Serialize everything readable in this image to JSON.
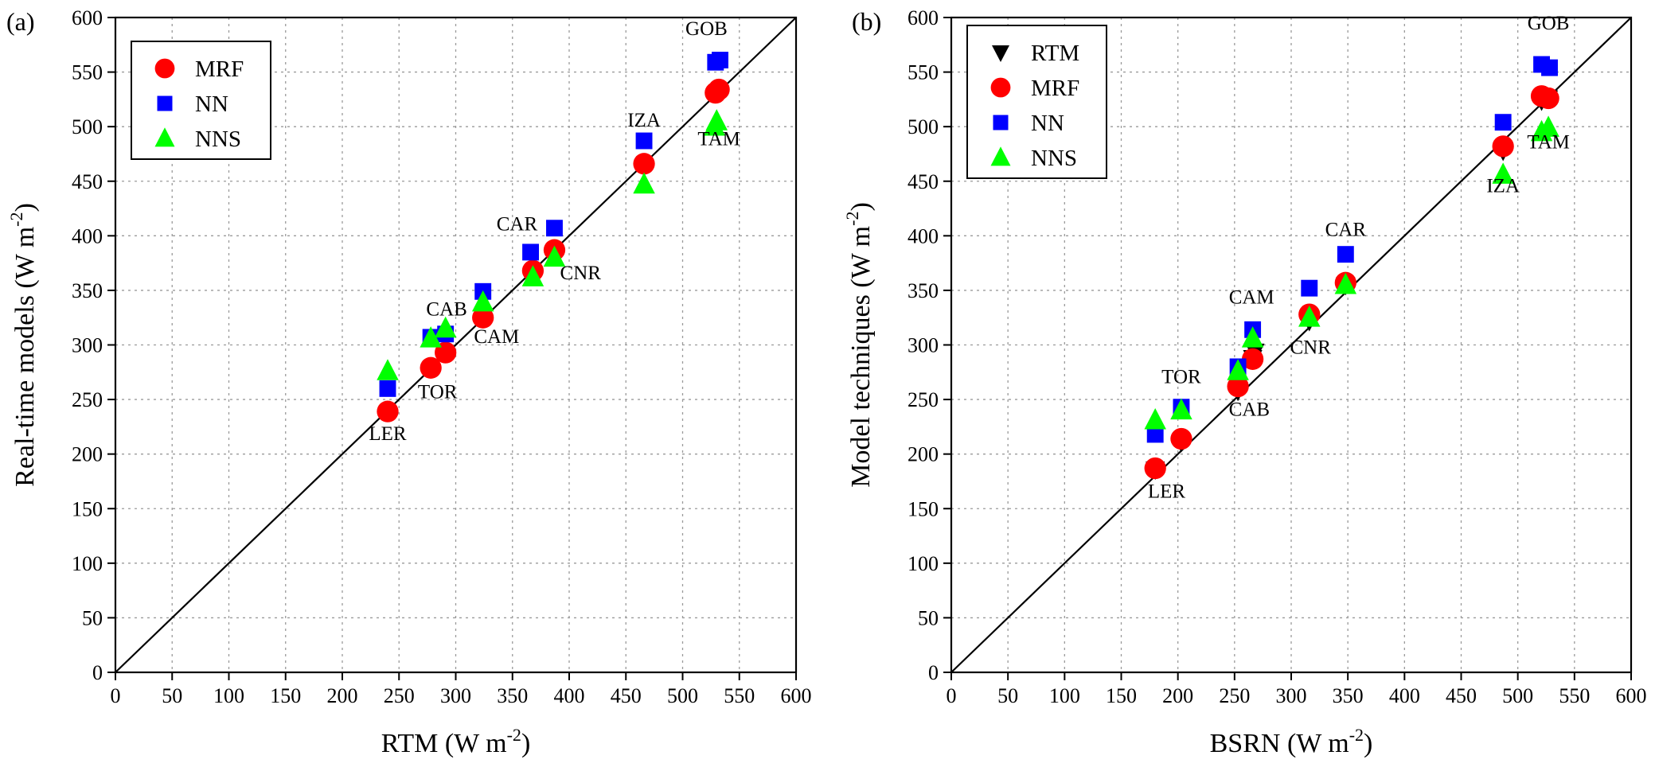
{
  "colors": {
    "RTM": "#000000",
    "MRF": "#ff0000",
    "NN": "#0000ff",
    "NNS": "#00ff00"
  },
  "chart_data": [
    {
      "panel_label": "(a)",
      "type": "scatter",
      "xlabel": "RTM (W m",
      "xlabel_sup": "-2",
      "xlabel_tail": ")",
      "ylabel": "Real-time models (W m",
      "ylabel_sup": "-2",
      "ylabel_tail": ")",
      "xlim": [
        0,
        600
      ],
      "ylim": [
        0,
        600
      ],
      "xticks": [
        0,
        50,
        100,
        150,
        200,
        250,
        300,
        350,
        400,
        450,
        500,
        550,
        600
      ],
      "yticks": [
        0,
        50,
        100,
        150,
        200,
        250,
        300,
        350,
        400,
        450,
        500,
        550,
        600
      ],
      "grid": true,
      "identity_line": true,
      "legend_position": "top-left",
      "series": [
        {
          "name": "MRF",
          "marker": "circle",
          "color": "#ff0000",
          "points": [
            [
              240,
              239
            ],
            [
              278,
              279
            ],
            [
              291,
              293
            ],
            [
              324,
              325
            ],
            [
              368,
              368
            ],
            [
              387,
              387
            ],
            [
              466,
              466
            ],
            [
              529,
              531
            ],
            [
              532,
              534
            ]
          ]
        },
        {
          "name": "NN",
          "marker": "square",
          "color": "#0000ff",
          "points": [
            [
              240,
              260
            ],
            [
              278,
              307
            ],
            [
              291,
              310
            ],
            [
              324,
              349
            ],
            [
              366,
              385
            ],
            [
              387,
              407
            ],
            [
              466,
              487
            ],
            [
              529,
              559
            ],
            [
              533,
              561
            ]
          ]
        },
        {
          "name": "NNS",
          "marker": "triangle-up",
          "color": "#00ff00",
          "points": [
            [
              240,
              276
            ],
            [
              278,
              306
            ],
            [
              291,
              315
            ],
            [
              324,
              339
            ],
            [
              368,
              362
            ],
            [
              387,
              380
            ],
            [
              466,
              447
            ],
            [
              528,
              500
            ],
            [
              530,
              505
            ]
          ]
        }
      ],
      "annotations": [
        {
          "text": "LER",
          "x": 240,
          "y": 213
        },
        {
          "text": "TOR",
          "x": 284,
          "y": 251
        },
        {
          "text": "CAB",
          "x": 292,
          "y": 327
        },
        {
          "text": "CAM",
          "x": 336,
          "y": 302
        },
        {
          "text": "CAR",
          "x": 354,
          "y": 405
        },
        {
          "text": "CNR",
          "x": 410,
          "y": 360
        },
        {
          "text": "IZA",
          "x": 466,
          "y": 500
        },
        {
          "text": "GOB",
          "x": 521,
          "y": 584
        },
        {
          "text": "TAM",
          "x": 532,
          "y": 483
        }
      ]
    },
    {
      "panel_label": "(b)",
      "type": "scatter",
      "xlabel": "BSRN (W m",
      "xlabel_sup": "-2",
      "xlabel_tail": ")",
      "ylabel": "Model techniques (W m",
      "ylabel_sup": "-2",
      "ylabel_tail": ")",
      "xlim": [
        0,
        600
      ],
      "ylim": [
        0,
        600
      ],
      "xticks": [
        0,
        50,
        100,
        150,
        200,
        250,
        300,
        350,
        400,
        450,
        500,
        550,
        600
      ],
      "yticks": [
        0,
        50,
        100,
        150,
        200,
        250,
        300,
        350,
        400,
        450,
        500,
        550,
        600
      ],
      "grid": true,
      "identity_line": true,
      "legend_position": "top-left",
      "series": [
        {
          "name": "RTM",
          "marker": "triangle-down",
          "color": "#000000",
          "points": [
            [
              180,
              186
            ],
            [
              203,
              211
            ],
            [
              253,
              258
            ],
            [
              266,
              288
            ],
            [
              268,
              294
            ],
            [
              316,
              322
            ],
            [
              348,
              355
            ],
            [
              487,
              478
            ],
            [
              521,
              524
            ],
            [
              527,
              526
            ]
          ]
        },
        {
          "name": "MRF",
          "marker": "circle",
          "color": "#ff0000",
          "points": [
            [
              180,
              187
            ],
            [
              203,
              214
            ],
            [
              253,
              262
            ],
            [
              266,
              287
            ],
            [
              316,
              328
            ],
            [
              348,
              357
            ],
            [
              487,
              482
            ],
            [
              521,
              528
            ],
            [
              527,
              526
            ]
          ]
        },
        {
          "name": "NN",
          "marker": "square",
          "color": "#0000ff",
          "points": [
            [
              180,
              218
            ],
            [
              203,
              243
            ],
            [
              253,
              280
            ],
            [
              266,
              314
            ],
            [
              316,
              352
            ],
            [
              348,
              383
            ],
            [
              487,
              504
            ],
            [
              521,
              557
            ],
            [
              528,
              554
            ]
          ]
        },
        {
          "name": "NNS",
          "marker": "triangle-up",
          "color": "#00ff00",
          "points": [
            [
              180,
              231
            ],
            [
              203,
              240
            ],
            [
              253,
              276
            ],
            [
              266,
              306
            ],
            [
              316,
              325
            ],
            [
              348,
              355
            ],
            [
              487,
              456
            ],
            [
              521,
              495
            ],
            [
              527,
              499
            ]
          ]
        }
      ],
      "annotations": [
        {
          "text": "LER",
          "x": 190,
          "y": 160
        },
        {
          "text": "TOR",
          "x": 203,
          "y": 265
        },
        {
          "text": "CAM",
          "x": 265,
          "y": 338
        },
        {
          "text": "CAB",
          "x": 263,
          "y": 235
        },
        {
          "text": "CNR",
          "x": 317,
          "y": 292
        },
        {
          "text": "CAR",
          "x": 348,
          "y": 400
        },
        {
          "text": "IZA",
          "x": 487,
          "y": 440
        },
        {
          "text": "TAM",
          "x": 527,
          "y": 480
        },
        {
          "text": "GOB",
          "x": 527,
          "y": 589
        }
      ]
    }
  ]
}
